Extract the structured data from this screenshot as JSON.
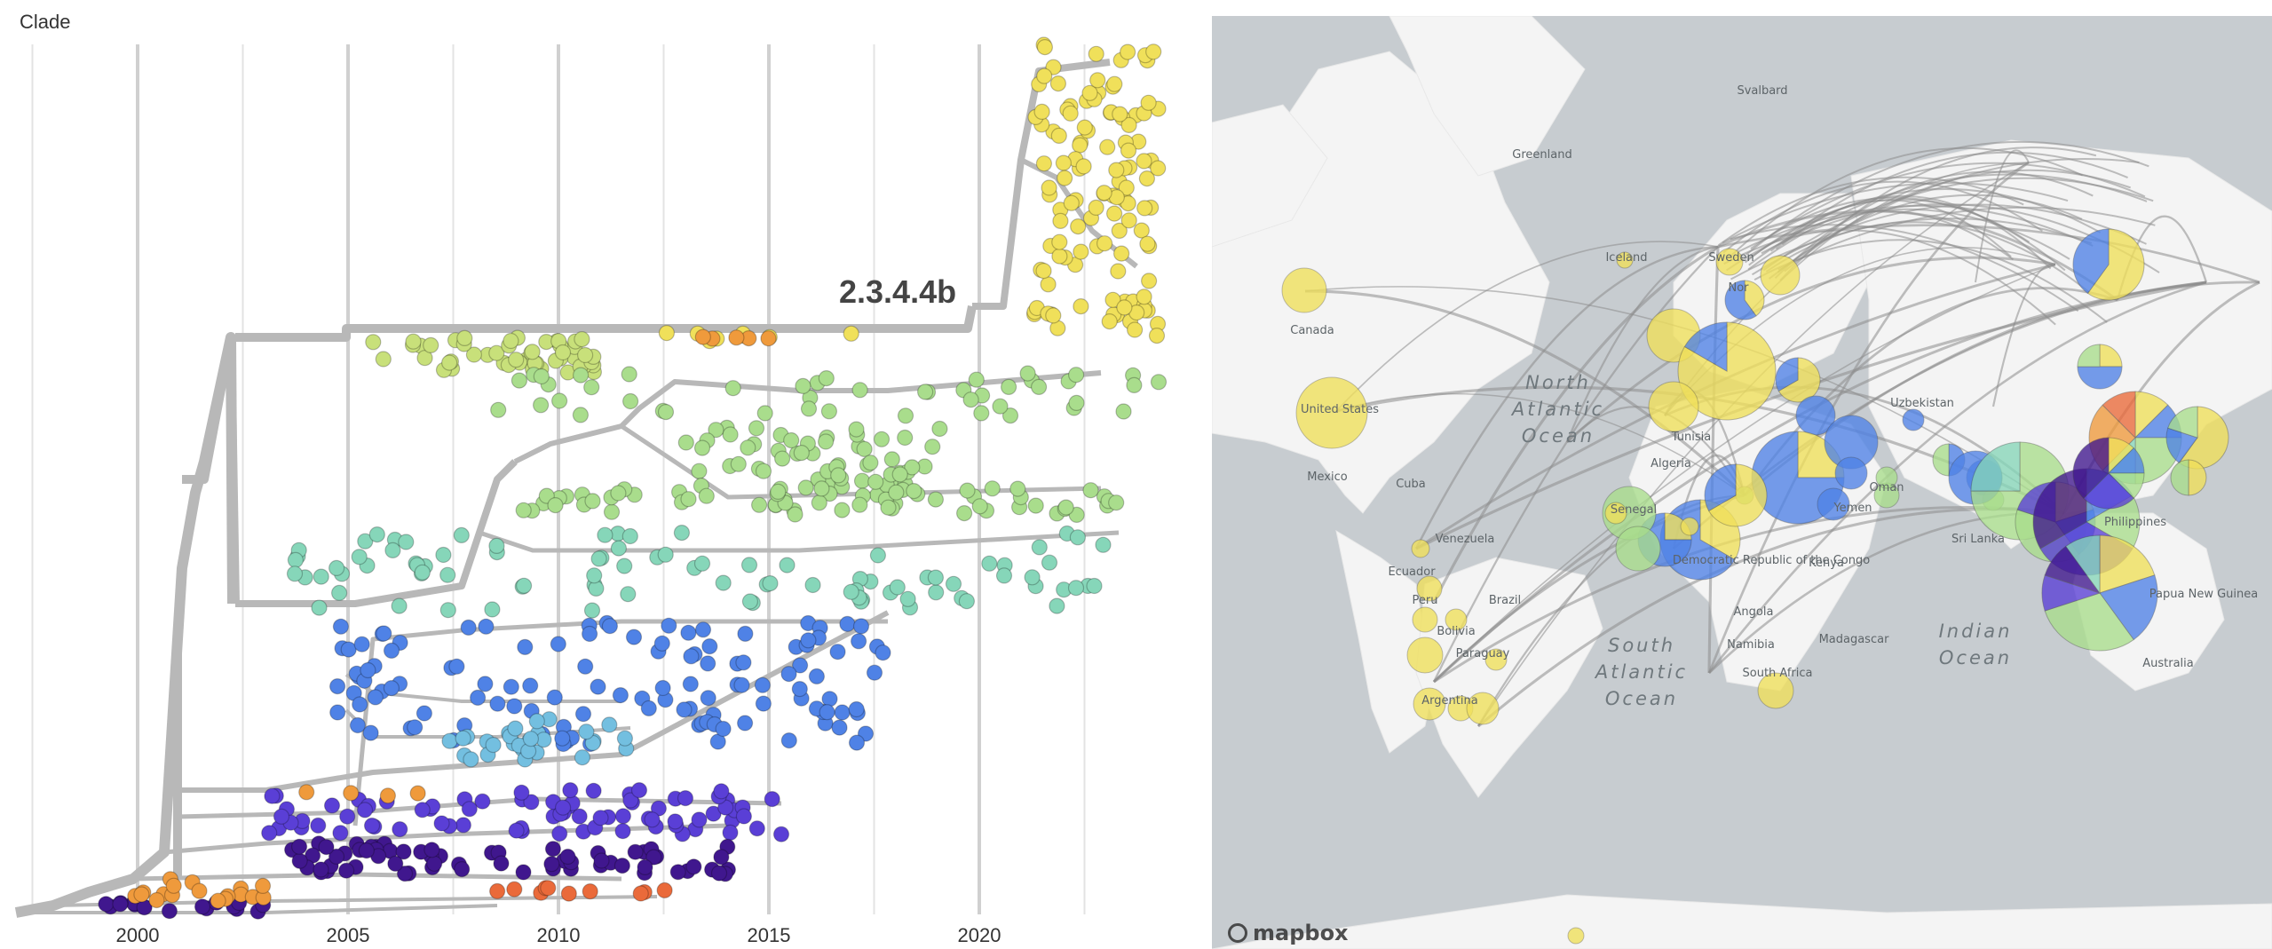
{
  "tree": {
    "title": "Clade",
    "clade_label": "2.3.4.4b",
    "x_ticks": [
      "2000",
      "2005",
      "2010",
      "2015",
      "2020"
    ],
    "colors": {
      "branch": "#b8b8b8",
      "yellow": "#f0e05a",
      "yellow_green": "#c8e07a",
      "green": "#a9dd8c",
      "teal": "#86d6b9",
      "blue": "#4f82e6",
      "light_blue": "#73bfe0",
      "indigo": "#5a3fd6",
      "purple": "#40178e",
      "orange": "#ef9a3c",
      "red_orange": "#ea6a3a"
    }
  },
  "map": {
    "labels": {
      "svalbard": "Svalbard",
      "greenland": "Greenland",
      "iceland": "Iceland",
      "sweden": "Sweden",
      "norway": "Nor",
      "canada": "Canada",
      "united_states": "United States",
      "mexico": "Mexico",
      "cuba": "Cuba",
      "venezuela": "Venezuela",
      "ecuador": "Ecuador",
      "peru": "Peru",
      "brazil": "Brazil",
      "bolivia": "Bolivia",
      "paraguay": "Paraguay",
      "argentina": "Argentina",
      "tunisia": "Tunisia",
      "algeria": "Algeria",
      "senegal": "Senegal",
      "democratic_republic": "Democratic Republic of the Congo",
      "angola": "Angola",
      "namibia": "Namibia",
      "south_africa": "South Africa",
      "kenya": "Kenya",
      "madagascar": "Madagascar",
      "yemen": "Yemen",
      "oman": "Oman",
      "uzbekistan": "Uzbekistan",
      "sri_lanka": "Sri Lanka",
      "philippines": "Philippines",
      "papua_new_guinea": "Papua New Guinea",
      "australia": "Australia"
    },
    "oceans": {
      "north_atlantic": [
        "North",
        "Atlantic",
        "Ocean"
      ],
      "south_atlantic": [
        "South",
        "Atlantic",
        "Ocean"
      ],
      "indian": [
        "Indian",
        "Ocean"
      ]
    },
    "attribution": "mapbox"
  }
}
